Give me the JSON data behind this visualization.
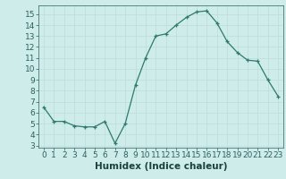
{
  "x": [
    0,
    1,
    2,
    3,
    4,
    5,
    6,
    7,
    8,
    9,
    10,
    11,
    12,
    13,
    14,
    15,
    16,
    17,
    18,
    19,
    20,
    21,
    22,
    23
  ],
  "y": [
    6.5,
    5.2,
    5.2,
    4.8,
    4.7,
    4.7,
    5.2,
    3.2,
    5.0,
    8.5,
    11.0,
    13.0,
    13.2,
    14.0,
    14.7,
    15.2,
    15.3,
    14.2,
    12.5,
    11.5,
    10.8,
    10.7,
    9.0,
    7.5
  ],
  "xlabel": "Humidex (Indice chaleur)",
  "xlim": [
    -0.5,
    23.5
  ],
  "ylim": [
    2.8,
    15.8
  ],
  "yticks": [
    3,
    4,
    5,
    6,
    7,
    8,
    9,
    10,
    11,
    12,
    13,
    14,
    15
  ],
  "xticks": [
    0,
    1,
    2,
    3,
    4,
    5,
    6,
    7,
    8,
    9,
    10,
    11,
    12,
    13,
    14,
    15,
    16,
    17,
    18,
    19,
    20,
    21,
    22,
    23
  ],
  "line_color": "#2d7a6e",
  "marker": "+",
  "bg_color": "#ceecea",
  "grid_color": "#c0dedd",
  "axis_bg": "#ceecea",
  "tick_color": "#2d6060",
  "label_color": "#1a4040",
  "font_size": 6.5,
  "xlabel_fontsize": 7.5
}
